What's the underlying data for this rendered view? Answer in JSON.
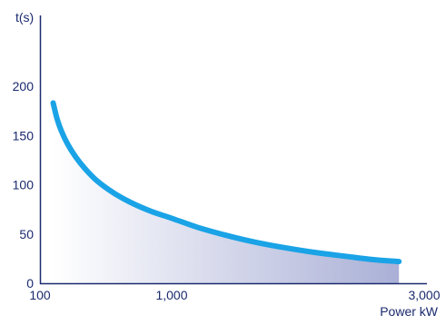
{
  "chart_data": {
    "type": "line",
    "title": "",
    "xlabel": "Power kW",
    "ylabel": "t(s)",
    "x_scale": "custom",
    "x_ticks": [
      {
        "value": 100,
        "label": "100"
      },
      {
        "value": 1000,
        "label": "1,000"
      },
      {
        "value": 3000,
        "label": "3,000"
      }
    ],
    "y_ticks": [
      {
        "value": 0,
        "label": "0"
      },
      {
        "value": 50,
        "label": "50"
      },
      {
        "value": 100,
        "label": "100"
      },
      {
        "value": 150,
        "label": "150"
      },
      {
        "value": 200,
        "label": "200"
      }
    ],
    "ylim": [
      0,
      220
    ],
    "grid": false,
    "area_fill": true,
    "series": [
      {
        "name": "",
        "color": "#1aa3e6",
        "points": [
          {
            "x": 190,
            "y": 183
          },
          {
            "x": 215,
            "y": 168
          },
          {
            "x": 245,
            "y": 155
          },
          {
            "x": 290,
            "y": 141
          },
          {
            "x": 345,
            "y": 128
          },
          {
            "x": 410,
            "y": 116
          },
          {
            "x": 490,
            "y": 104
          },
          {
            "x": 600,
            "y": 92
          },
          {
            "x": 720,
            "y": 82
          },
          {
            "x": 860,
            "y": 73
          },
          {
            "x": 1000,
            "y": 66
          },
          {
            "x": 1200,
            "y": 57
          },
          {
            "x": 1420,
            "y": 49
          },
          {
            "x": 1650,
            "y": 42
          },
          {
            "x": 1900,
            "y": 36
          },
          {
            "x": 2150,
            "y": 31
          },
          {
            "x": 2400,
            "y": 27
          },
          {
            "x": 2600,
            "y": 24
          },
          {
            "x": 2800,
            "y": 22
          }
        ]
      }
    ],
    "colors": {
      "axis": "#1a2a6e",
      "text": "#1a2a6e",
      "fill_start": "#ffffff",
      "fill_end": "#aab0d6"
    }
  }
}
